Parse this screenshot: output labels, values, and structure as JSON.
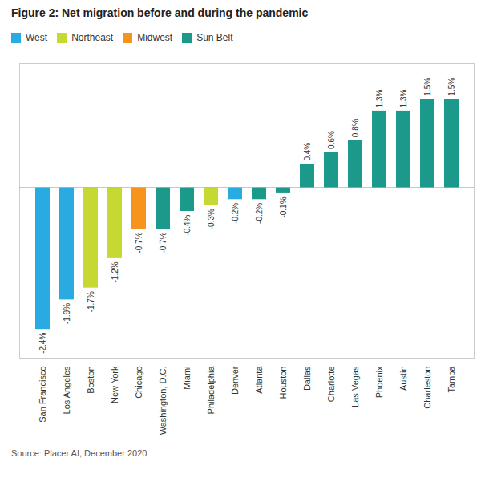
{
  "chart_data": {
    "type": "bar",
    "title": "Figure 2: Net migration before and during the pandemic",
    "caption": "Source: Placer AI, December 2020",
    "categories": [
      "San Francisco",
      "Los Angeles",
      "Boston",
      "New York",
      "Chicago",
      "Washington, D.C.",
      "Miami",
      "Philadelphia",
      "Denver",
      "Atlanta",
      "Houston",
      "Dallas",
      "Charlotte",
      "Las Vegas",
      "Phoenix",
      "Austin",
      "Charleston",
      "Tampa"
    ],
    "series": [
      {
        "name": "West",
        "color": "#29ABE2",
        "values": [
          -2.4,
          -1.9,
          null,
          null,
          null,
          null,
          null,
          null,
          -0.2,
          null,
          null,
          null,
          null,
          null,
          null,
          null,
          null,
          null
        ],
        "value_labels": [
          "-2.4%",
          "-1.9%",
          null,
          null,
          null,
          null,
          null,
          null,
          "-0.2%",
          null,
          null,
          null,
          null,
          null,
          null,
          null,
          null,
          null
        ]
      },
      {
        "name": "Northeast",
        "color": "#C5D932",
        "values": [
          null,
          null,
          -1.7,
          -1.2,
          null,
          null,
          null,
          -0.3,
          null,
          null,
          null,
          null,
          null,
          null,
          null,
          null,
          null,
          null
        ],
        "value_labels": [
          null,
          null,
          "-1.7%",
          "-1.2%",
          null,
          null,
          null,
          "-0.3%",
          null,
          null,
          null,
          null,
          null,
          null,
          null,
          null,
          null,
          null
        ]
      },
      {
        "name": "Midwest",
        "color": "#F7941D",
        "values": [
          null,
          null,
          null,
          null,
          -0.7,
          null,
          null,
          null,
          null,
          null,
          null,
          null,
          null,
          null,
          null,
          null,
          null,
          null
        ],
        "value_labels": [
          null,
          null,
          null,
          null,
          "-0.7%",
          null,
          null,
          null,
          null,
          null,
          null,
          null,
          null,
          null,
          null,
          null,
          null,
          null
        ]
      },
      {
        "name": "Sun Belt",
        "color": "#1B998B",
        "values": [
          null,
          null,
          null,
          null,
          null,
          -0.7,
          -0.4,
          null,
          null,
          -0.2,
          -0.1,
          0.4,
          0.6,
          0.8,
          1.3,
          1.3,
          1.5,
          1.5
        ],
        "value_labels": [
          null,
          null,
          null,
          null,
          null,
          "-0.7%",
          "-0.4%",
          null,
          null,
          "-0.2%",
          "-0.1%",
          "0.4%",
          "0.6%",
          "0.8%",
          "1.3%",
          "1.3%",
          "1.5%",
          "1.5%"
        ]
      }
    ],
    "ylim": [
      -2.9,
      2.1
    ],
    "yticks": [],
    "tick_labels": "x",
    "data_labels": true,
    "legend": "top",
    "grid": false
  }
}
